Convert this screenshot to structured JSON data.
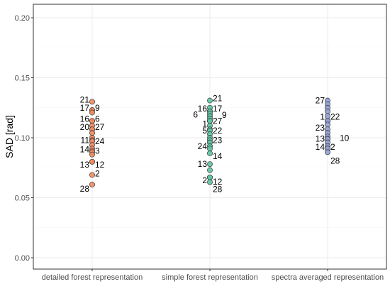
{
  "chart_data": {
    "type": "scatter",
    "title": "",
    "xlabel": "",
    "ylabel": "SAD [rad]",
    "ylim": [
      0,
      0.2
    ],
    "yticks": [
      "0.00",
      "0.05",
      "0.10",
      "0.15",
      "0.20"
    ],
    "grid": true,
    "categories": [
      "detailed forest representation",
      "simple forest representation",
      "spectra averaged representation"
    ],
    "colors": [
      "#f08a5f",
      "#5cc4a0",
      "#8fa0d4"
    ],
    "series": [
      {
        "points": [
          {
            "y": 0.13,
            "label": "21",
            "side": "left",
            "dy": -3
          },
          {
            "y": 0.123,
            "label": "17",
            "side": "left",
            "dy": -3
          },
          {
            "y": 0.123,
            "label": "9",
            "side": "right",
            "dy": -3
          },
          {
            "y": 0.121,
            "label": "",
            "side": "",
            "dy": 0
          },
          {
            "y": 0.114,
            "label": "16",
            "side": "left",
            "dy": -3
          },
          {
            "y": 0.114,
            "label": "6",
            "side": "right",
            "dy": -3
          },
          {
            "y": 0.11,
            "label": "",
            "side": "",
            "dy": 0
          },
          {
            "y": 0.107,
            "label": "20",
            "side": "left",
            "dy": -3
          },
          {
            "y": 0.107,
            "label": "27",
            "side": "right",
            "dy": -3
          },
          {
            "y": 0.104,
            "label": "",
            "side": "",
            "dy": 0
          },
          {
            "y": 0.1,
            "label": "",
            "side": "",
            "dy": 0
          },
          {
            "y": 0.098,
            "label": "11",
            "side": "left",
            "dy": 0
          },
          {
            "y": 0.097,
            "label": "24",
            "side": "right",
            "dy": 0
          },
          {
            "y": 0.094,
            "label": "",
            "side": "",
            "dy": 0
          },
          {
            "y": 0.091,
            "label": "",
            "side": "",
            "dy": 0
          },
          {
            "y": 0.089,
            "label": "14",
            "side": "left",
            "dy": -2
          },
          {
            "y": 0.088,
            "label": "3",
            "side": "right",
            "dy": -2
          },
          {
            "y": 0.086,
            "label": "",
            "side": "",
            "dy": 0
          },
          {
            "y": 0.08,
            "label": "13",
            "side": "left",
            "dy": 4
          },
          {
            "y": 0.08,
            "label": "12",
            "side": "right",
            "dy": 4
          },
          {
            "y": 0.069,
            "label": "2",
            "side": "right",
            "dy": -2
          },
          {
            "y": 0.061,
            "label": "28",
            "side": "left",
            "dy": 6
          }
        ]
      },
      {
        "points": [
          {
            "y": 0.131,
            "label": "21",
            "side": "right",
            "dy": -3
          },
          {
            "y": 0.125,
            "label": "",
            "side": "",
            "dy": 0
          },
          {
            "y": 0.122,
            "label": "16",
            "side": "left",
            "dy": -4
          },
          {
            "y": 0.122,
            "label": "17",
            "side": "right",
            "dy": -4
          },
          {
            "y": 0.12,
            "label": "9",
            "side": "farright",
            "dy": 2
          },
          {
            "y": 0.118,
            "label": "6",
            "side": "farleft",
            "dy": -2
          },
          {
            "y": 0.116,
            "label": "",
            "side": "",
            "dy": 0
          },
          {
            "y": 0.114,
            "label": "1",
            "side": "left",
            "dy": 4
          },
          {
            "y": 0.114,
            "label": "27",
            "side": "right",
            "dy": 0
          },
          {
            "y": 0.11,
            "label": "",
            "side": "",
            "dy": 0
          },
          {
            "y": 0.107,
            "label": "5",
            "side": "left",
            "dy": 2
          },
          {
            "y": 0.106,
            "label": "22",
            "side": "right",
            "dy": 0
          },
          {
            "y": 0.103,
            "label": "",
            "side": "",
            "dy": 0
          },
          {
            "y": 0.1,
            "label": "",
            "side": "",
            "dy": 0
          },
          {
            "y": 0.098,
            "label": "23",
            "side": "right",
            "dy": 0
          },
          {
            "y": 0.096,
            "label": "",
            "side": "",
            "dy": 0
          },
          {
            "y": 0.093,
            "label": "24",
            "side": "left",
            "dy": 0
          },
          {
            "y": 0.091,
            "label": "",
            "side": "",
            "dy": 0
          },
          {
            "y": 0.087,
            "label": "14",
            "side": "right",
            "dy": 4
          },
          {
            "y": 0.078,
            "label": "13",
            "side": "left",
            "dy": 0
          },
          {
            "y": 0.073,
            "label": "",
            "side": "",
            "dy": 0
          },
          {
            "y": 0.067,
            "label": "2",
            "side": "left",
            "dy": 4
          },
          {
            "y": 0.067,
            "label": "12",
            "side": "right",
            "dy": 6
          },
          {
            "y": 0.063,
            "label": "28",
            "side": "right",
            "dy": 10
          }
        ]
      },
      {
        "points": [
          {
            "y": 0.131,
            "label": "27",
            "side": "left",
            "dy": 0
          },
          {
            "y": 0.128,
            "label": "",
            "side": "",
            "dy": 0
          },
          {
            "y": 0.125,
            "label": "",
            "side": "",
            "dy": 0
          },
          {
            "y": 0.122,
            "label": "",
            "side": "",
            "dy": 0
          },
          {
            "y": 0.118,
            "label": "",
            "side": "",
            "dy": 0
          },
          {
            "y": 0.114,
            "label": "1",
            "side": "left",
            "dy": -6
          },
          {
            "y": 0.114,
            "label": "22",
            "side": "right",
            "dy": -6
          },
          {
            "y": 0.111,
            "label": "",
            "side": "",
            "dy": 0
          },
          {
            "y": 0.107,
            "label": "23",
            "side": "left",
            "dy": -2
          },
          {
            "y": 0.104,
            "label": "",
            "side": "",
            "dy": 0
          },
          {
            "y": 0.101,
            "label": "",
            "side": "",
            "dy": 0
          },
          {
            "y": 0.099,
            "label": "13",
            "side": "left",
            "dy": 0
          },
          {
            "y": 0.099,
            "label": "10",
            "side": "farright",
            "dy": -1
          },
          {
            "y": 0.096,
            "label": "",
            "side": "",
            "dy": 0
          },
          {
            "y": 0.093,
            "label": "",
            "side": "",
            "dy": 0
          },
          {
            "y": 0.091,
            "label": "14",
            "side": "left",
            "dy": -2
          },
          {
            "y": 0.091,
            "label": "2",
            "side": "right",
            "dy": -2
          },
          {
            "y": 0.088,
            "label": "28",
            "side": "right",
            "dy": 12
          }
        ]
      }
    ]
  }
}
